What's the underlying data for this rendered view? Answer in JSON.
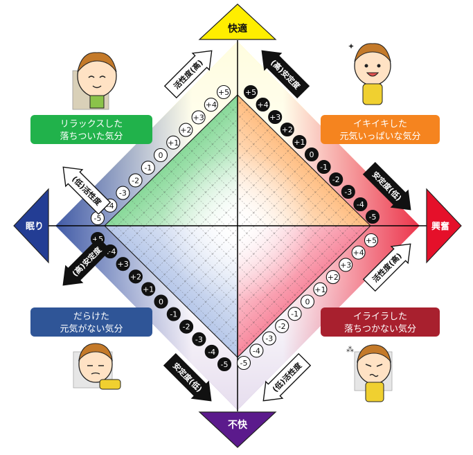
{
  "poles": {
    "top": "快適",
    "bottom": "不快",
    "left": "眠り",
    "right": "興奮"
  },
  "quadrants": {
    "top_left": [
      "リラックスした",
      "落ちついた気分"
    ],
    "top_right": [
      "イキイキした",
      "元気いっぱいな気分"
    ],
    "bottom_left": [
      "だらけた",
      "元気がない気分"
    ],
    "bottom_right": [
      "イライラした",
      "落ちつかない気分"
    ]
  },
  "arrows": {
    "top_left": "活性度(高)",
    "top_right": "(高)安定度",
    "left_upper": "(低)活性度",
    "right_upper": "安定度(低)",
    "left_lower": "(高)安定度",
    "right_lower": "活性度(高)",
    "bottom_left": "安定度(低)",
    "bottom_right": "(低)活性度"
  },
  "scale_labels": [
    "+5",
    "+4",
    "+3",
    "+2",
    "+1",
    "0",
    "-1",
    "-2",
    "-3",
    "-4",
    "-5"
  ],
  "colors": {
    "comfort": "#ffe400",
    "discomfort": "#5a1a8a",
    "sleep": "#1f3d96",
    "excitement": "#e8102a",
    "relaxed_green": "#18c23c",
    "lively_orange": "#ff8c00",
    "dull_blue": "#7f9cd6",
    "irritated_red": "#f0183a",
    "box_green": "#21b24b",
    "box_orange": "#f5841f",
    "box_blue": "#2f5597",
    "box_red": "#a8202e"
  }
}
